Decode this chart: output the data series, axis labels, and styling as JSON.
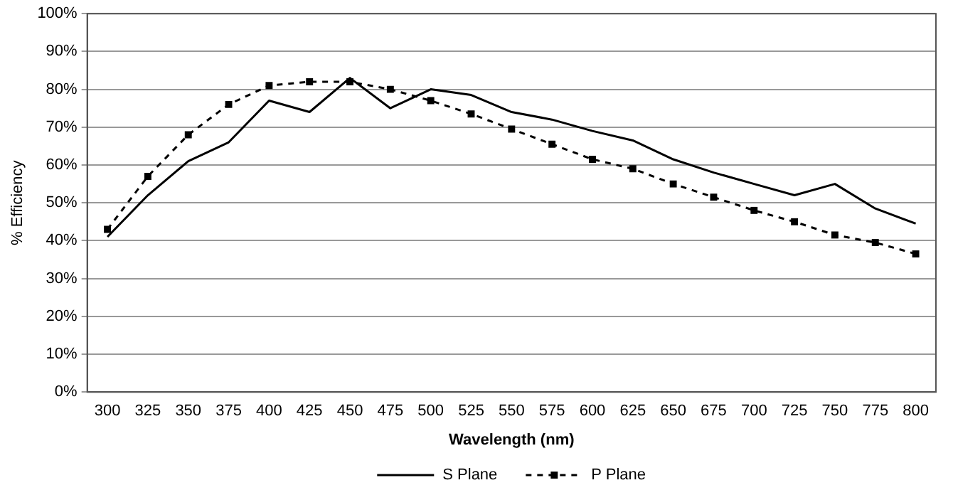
{
  "chart_data": {
    "type": "line",
    "xlabel": "Wavelength (nm)",
    "ylabel": "% Efficiency",
    "categories": [
      "300",
      "325",
      "350",
      "375",
      "400",
      "425",
      "450",
      "475",
      "500",
      "525",
      "550",
      "575",
      "600",
      "625",
      "650",
      "675",
      "700",
      "725",
      "750",
      "775",
      "800"
    ],
    "series": [
      {
        "name": "S Plane",
        "color": "#000000",
        "line_style": "solid",
        "marker": "none",
        "values": [
          41,
          52,
          61,
          66,
          77,
          74,
          83,
          75,
          80,
          78.5,
          74,
          72,
          69,
          66.5,
          61.5,
          58,
          55,
          52,
          55,
          48.5,
          44.5
        ]
      },
      {
        "name": "P Plane",
        "color": "#000000",
        "line_style": "dashed",
        "marker": "square",
        "values": [
          43,
          57,
          68,
          76,
          81,
          82,
          82,
          80,
          77,
          73.5,
          69.5,
          65.5,
          61.5,
          59,
          55,
          51.5,
          48,
          45,
          41.5,
          39.5,
          36.5
        ]
      }
    ],
    "ylim": [
      0,
      100
    ],
    "yticks": [
      {
        "value": 0,
        "label": "0%"
      },
      {
        "value": 10,
        "label": "10%"
      },
      {
        "value": 20,
        "label": "20%"
      },
      {
        "value": 30,
        "label": "30%"
      },
      {
        "value": 40,
        "label": "40%"
      },
      {
        "value": 50,
        "label": "50%"
      },
      {
        "value": 60,
        "label": "60%"
      },
      {
        "value": 70,
        "label": "70%"
      },
      {
        "value": 80,
        "label": "80%"
      },
      {
        "value": 90,
        "label": "90%"
      },
      {
        "value": 100,
        "label": "100%"
      }
    ],
    "grid": "y",
    "legend": "bottom"
  }
}
